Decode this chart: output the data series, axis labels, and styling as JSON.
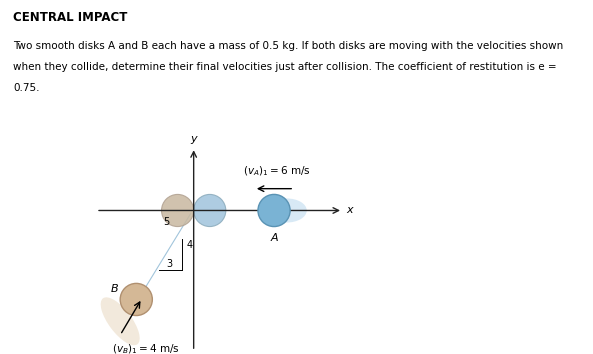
{
  "title": "CENTRAL IMPACT",
  "description_line1": "Two smooth disks A and B each have a mass of 0.5 kg. If both disks are moving with the velocities shown",
  "description_line2": "when they collide, determine their final velocities just after collision. The coefficient of restitution is e =",
  "description_line3": "0.75.",
  "bg_color": "#ffffff",
  "text_color": "#000000",
  "axis_color": "#222222",
  "disk_A_color": "#7ab3d4",
  "disk_A_edge": "#5a93b4",
  "disk_A_glow_color": "#b8d8ee",
  "disk_B_color": "#d4b896",
  "disk_B_edge": "#b09070",
  "disk_B_glow_color": "#e8d8c0",
  "disk_col_A_color": "#a0c4dc",
  "disk_col_B_color": "#c8b8a0",
  "line_color": "#4a6690",
  "note_line_color": "#7aaccc"
}
